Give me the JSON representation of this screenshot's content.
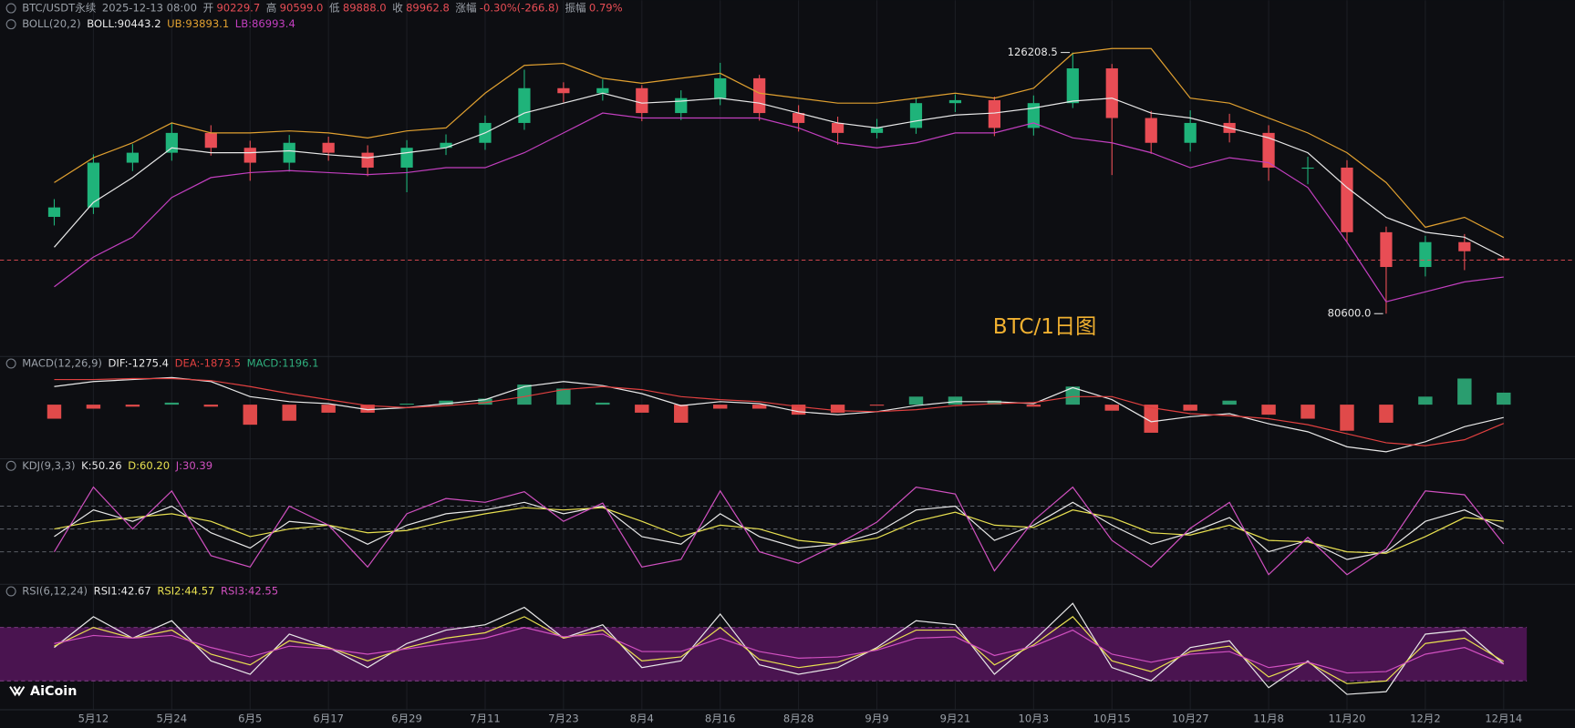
{
  "header": {
    "symbol": "BTC/USDT永续",
    "time": "2025-12-13 08:00",
    "fields": [
      {
        "label": "开",
        "value": "90229.7"
      },
      {
        "label": "高",
        "value": "90599.0"
      },
      {
        "label": "低",
        "value": "89888.0"
      },
      {
        "label": "收",
        "value": "89962.8"
      },
      {
        "label": "涨幅",
        "value": "-0.30%(-266.8)"
      },
      {
        "label": "振幅",
        "value": "0.79%"
      }
    ]
  },
  "watermark": "BTC/1日图",
  "brand": "AiCoin",
  "chart_data": [
    {
      "type": "candlestick",
      "label": "BOLL(20,2)",
      "categories": [
        null,
        "5月12",
        null,
        "5月24",
        null,
        "6月5",
        null,
        "6月17",
        null,
        "6月29",
        null,
        "7月11",
        null,
        "7月23",
        null,
        "8月4",
        null,
        "8月16",
        null,
        "8月28",
        null,
        "9月9",
        null,
        "9月21",
        null,
        "10月3",
        null,
        "10月15",
        null,
        "10月27",
        null,
        "11月8",
        null,
        "11月20",
        null,
        "12月2",
        null,
        "12月14"
      ],
      "candles": {
        "up_color": "#1fb37a",
        "down_color": "#e84d55",
        "open": [
          97500,
          99150,
          106960,
          108700,
          112160,
          109560,
          106960,
          110430,
          108700,
          106100,
          109560,
          110430,
          113900,
          119970,
          119100,
          119970,
          115630,
          118230,
          121700,
          115630,
          113900,
          112160,
          113030,
          117360,
          117880,
          113030,
          117360,
          123430,
          114760,
          110430,
          113900,
          112160,
          106100,
          106100,
          94820,
          88750,
          93090,
          90229.7
        ],
        "high": [
          100600,
          108400,
          110200,
          114000,
          113500,
          110800,
          111800,
          111500,
          110000,
          110900,
          111900,
          115200,
          123200,
          121000,
          121500,
          120500,
          119600,
          124400,
          122300,
          117000,
          115000,
          114600,
          118300,
          118900,
          118500,
          118700,
          126208.5,
          124200,
          116000,
          116100,
          115500,
          113500,
          108000,
          107400,
          95800,
          94200,
          94500,
          90599.0
        ],
        "low": [
          96000,
          98000,
          105500,
          107300,
          108200,
          103800,
          105400,
          107300,
          104600,
          101800,
          108300,
          109200,
          112700,
          117500,
          117800,
          114200,
          114400,
          117000,
          114300,
          112400,
          110100,
          111200,
          112000,
          115800,
          111600,
          111700,
          116500,
          104800,
          108500,
          108900,
          110500,
          103800,
          103200,
          93000,
          80600,
          87100,
          88200,
          89888.0
        ],
        "close": [
          99150,
          106960,
          108700,
          112160,
          109560,
          106960,
          110430,
          108700,
          106100,
          109560,
          110430,
          113900,
          119970,
          119100,
          119970,
          115630,
          118230,
          121700,
          115630,
          113900,
          112160,
          113030,
          117360,
          117880,
          113030,
          117360,
          123430,
          114760,
          110430,
          113900,
          112160,
          106100,
          106100,
          94820,
          88750,
          93090,
          91500,
          89962.8
        ]
      },
      "series": [
        {
          "name": "BOLL:90443.2",
          "color": "#e8e8e8",
          "values": [
            92200,
            100030,
            104360,
            109560,
            108700,
            108700,
            109040,
            108350,
            107830,
            108700,
            109560,
            112160,
            115630,
            117360,
            119100,
            117360,
            117710,
            118230,
            117360,
            115630,
            113900,
            113030,
            114240,
            115280,
            115630,
            116500,
            117710,
            118230,
            115630,
            114760,
            113030,
            111300,
            108700,
            102630,
            97420,
            94820,
            93950,
            90443.2
          ]
        },
        {
          "name": "UB:93893.1",
          "color": "#e0a030",
          "values": [
            103490,
            107830,
            110430,
            113900,
            112160,
            112160,
            112510,
            112160,
            111290,
            112510,
            113030,
            119100,
            123950,
            124300,
            121700,
            120830,
            121700,
            122570,
            119100,
            118230,
            117360,
            117360,
            118230,
            119100,
            118230,
            119970,
            126040,
            126900,
            126900,
            118230,
            117360,
            114760,
            112160,
            108700,
            103490,
            95690,
            97420,
            93893.1
          ]
        },
        {
          "name": "LB:86993.4",
          "color": "#c23fbf",
          "values": [
            85290,
            90490,
            93960,
            100890,
            104360,
            105230,
            105570,
            105230,
            104880,
            105230,
            106090,
            106090,
            108700,
            112160,
            115630,
            114760,
            114760,
            114760,
            114760,
            113030,
            110430,
            109560,
            110430,
            112160,
            112160,
            113900,
            111290,
            110430,
            108700,
            106090,
            107830,
            106960,
            102630,
            93090,
            82680,
            84410,
            86150,
            86993.4
          ]
        }
      ],
      "annotations": [
        {
          "value": 126208.5,
          "label": "126208.5"
        },
        {
          "value": 80600,
          "label": "80600.0"
        }
      ],
      "ylim": [
        74000,
        132700
      ]
    },
    {
      "type": "macd",
      "label": "MACD(12,26,9)",
      "series": [
        {
          "name": "DIF:-1275.4",
          "color": "#e8e8e8",
          "values": [
            1800,
            2300,
            2500,
            2700,
            2300,
            800,
            300,
            100,
            -500,
            -300,
            100,
            500,
            1800,
            2300,
            1900,
            1100,
            -100,
            300,
            100,
            -700,
            -1000,
            -700,
            -100,
            300,
            300,
            100,
            1700,
            500,
            -1700,
            -1200,
            -900,
            -1900,
            -2700,
            -4200,
            -4700,
            -3700,
            -2200,
            -1275.4
          ]
        },
        {
          "name": "DEA:-1873.5",
          "color": "#e04040",
          "values": [
            2500,
            2500,
            2600,
            2600,
            2400,
            1800,
            1100,
            500,
            -100,
            -300,
            -100,
            200,
            800,
            1500,
            1800,
            1500,
            800,
            500,
            300,
            -200,
            -600,
            -700,
            -500,
            -100,
            100,
            200,
            800,
            800,
            -300,
            -900,
            -1100,
            -1400,
            -2000,
            -2900,
            -3800,
            -4100,
            -3500,
            -1873.5
          ]
        }
      ],
      "histogram": {
        "name": "MACD:1196.1",
        "color": "#2fae7d",
        "up_color": "#2a9d6f",
        "down_color": "#e04a4a",
        "values": [
          -1400,
          -400,
          -200,
          200,
          -200,
          -2000,
          -1600,
          -800,
          -800,
          100,
          400,
          600,
          2000,
          1600,
          200,
          -800,
          -1800,
          -400,
          -400,
          -1000,
          -800,
          -50,
          800,
          800,
          400,
          -200,
          1800,
          -600,
          -2800,
          -600,
          400,
          -1000,
          -1400,
          -2600,
          -1800,
          800,
          2600,
          1196.1
        ]
      },
      "ylim": [
        -5200,
        3300
      ]
    },
    {
      "type": "line",
      "label": "KDJ(9,3,3)",
      "series": [
        {
          "name": "K:50.26",
          "color": "#e8e8e8",
          "values": [
            40,
            75,
            60,
            80,
            45,
            25,
            60,
            55,
            30,
            55,
            70,
            75,
            85,
            70,
            80,
            40,
            30,
            70,
            40,
            25,
            30,
            45,
            75,
            80,
            35,
            55,
            85,
            55,
            30,
            45,
            65,
            20,
            35,
            10,
            20,
            60,
            75,
            50.26
          ]
        },
        {
          "name": "D:60.20",
          "color": "#e8e050",
          "values": [
            50,
            60,
            65,
            70,
            60,
            40,
            50,
            55,
            45,
            48,
            60,
            70,
            78,
            75,
            78,
            60,
            40,
            55,
            50,
            35,
            30,
            38,
            60,
            72,
            55,
            52,
            75,
            65,
            45,
            42,
            55,
            35,
            33,
            20,
            18,
            40,
            65,
            60.2
          ]
        },
        {
          "name": "J:30.39",
          "color": "#d050c0",
          "values": [
            20,
            105,
            50,
            100,
            15,
            0,
            80,
            55,
            0,
            70,
            90,
            85,
            99,
            60,
            84,
            0,
            10,
            100,
            20,
            5,
            30,
            59,
            105,
            96,
            -5,
            61,
            105,
            35,
            0,
            51,
            85,
            -10,
            39,
            -10,
            24,
            100,
            95,
            30.39
          ]
        }
      ],
      "reference_lines": [
        20,
        50,
        80
      ],
      "ylim": [
        -20,
        125
      ]
    },
    {
      "type": "line",
      "label": "RSI(6,12,24)",
      "series": [
        {
          "name": "RSI1:42.67",
          "color": "#e8e8e8",
          "values": [
            55,
            78,
            62,
            75,
            45,
            35,
            65,
            55,
            40,
            58,
            68,
            72,
            85,
            62,
            72,
            40,
            45,
            80,
            42,
            35,
            40,
            55,
            75,
            72,
            35,
            60,
            88,
            40,
            30,
            55,
            60,
            25,
            45,
            20,
            22,
            65,
            68,
            42.67
          ]
        },
        {
          "name": "RSI2:44.57",
          "color": "#e8e050",
          "values": [
            56,
            70,
            62,
            68,
            50,
            42,
            60,
            55,
            45,
            55,
            62,
            66,
            78,
            62,
            68,
            45,
            48,
            70,
            46,
            40,
            44,
            54,
            68,
            68,
            42,
            57,
            78,
            45,
            37,
            52,
            56,
            33,
            44,
            28,
            30,
            58,
            62,
            44.57
          ]
        },
        {
          "name": "RSI3:42.55",
          "color": "#d050c0",
          "values": [
            58,
            64,
            62,
            64,
            55,
            48,
            56,
            54,
            50,
            54,
            58,
            62,
            70,
            63,
            65,
            52,
            52,
            62,
            52,
            47,
            48,
            53,
            62,
            63,
            49,
            56,
            68,
            50,
            44,
            50,
            52,
            40,
            44,
            36,
            37,
            50,
            55,
            42.55
          ]
        }
      ],
      "band": [
        30,
        70
      ],
      "band_color": "#4a1450",
      "ylim": [
        10,
        100
      ]
    }
  ]
}
